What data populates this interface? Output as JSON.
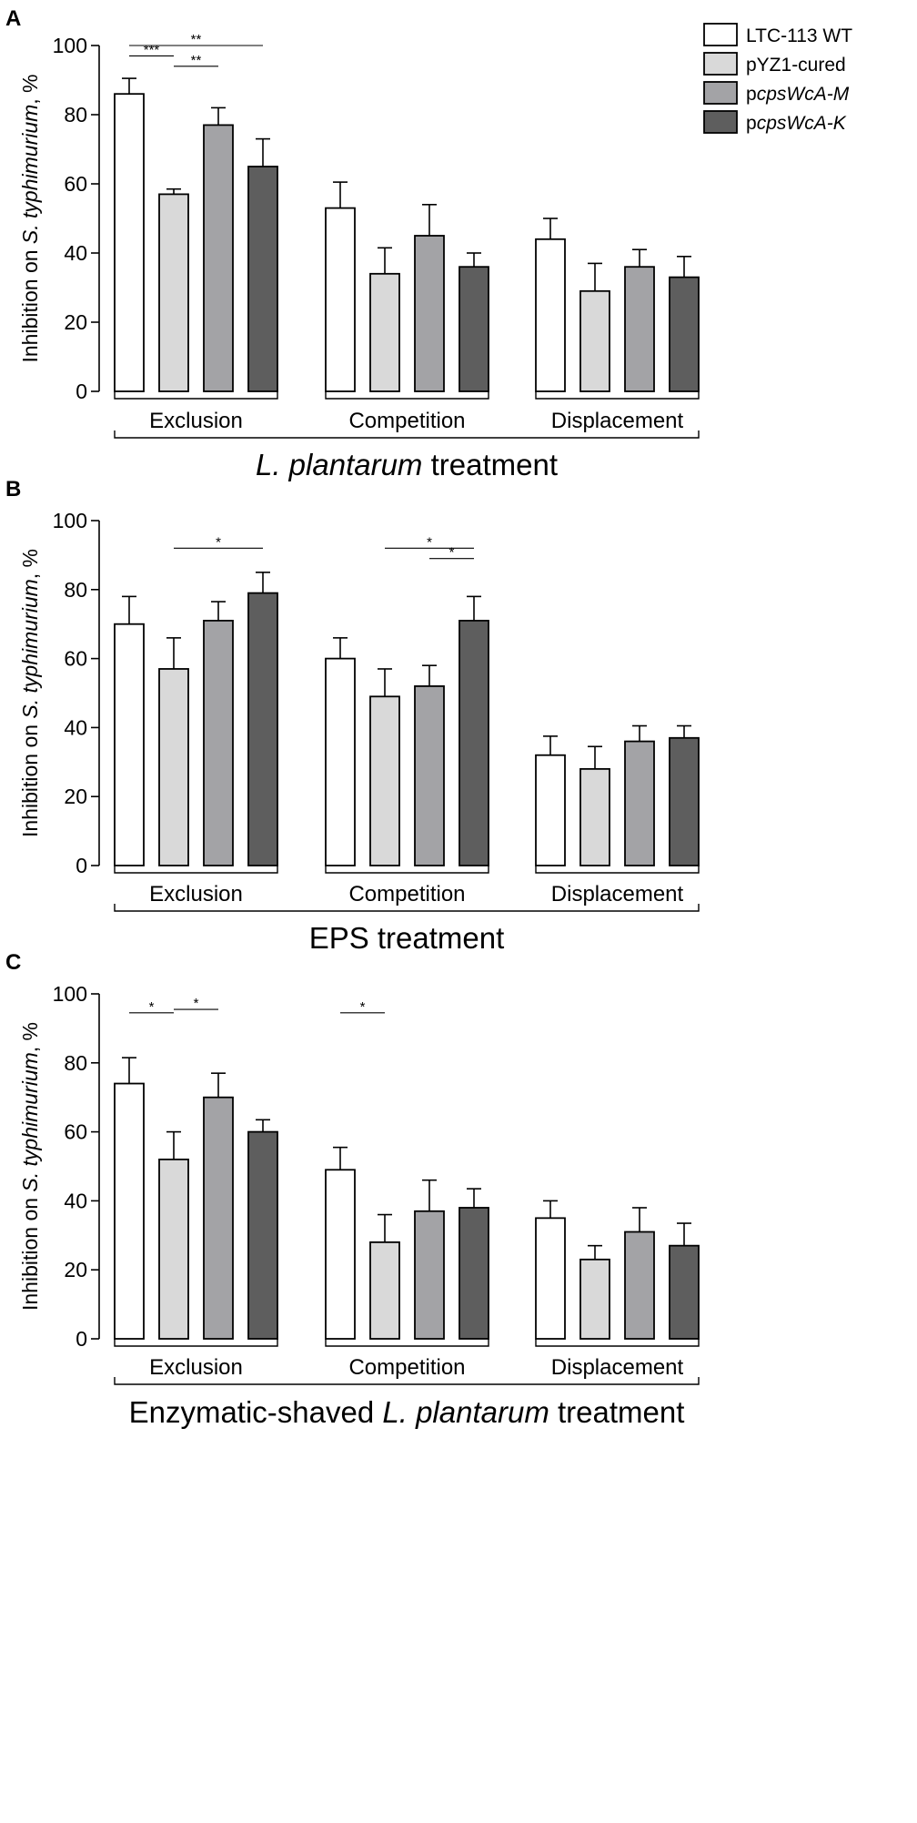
{
  "legend": {
    "entries": [
      {
        "label": "LTC-113 WT",
        "color": "#ffffff"
      },
      {
        "label": "pYZ1-cured",
        "color": "#d9d9d9"
      },
      {
        "label": "pcpsWcA-M",
        "color": "#a3a3a6"
      },
      {
        "label": "pcpsWcA-K",
        "color": "#5e5e5e"
      }
    ]
  },
  "chart_data": [
    {
      "type": "bar",
      "panel": "A",
      "title": "",
      "xlabel": "L. plantarum treatment",
      "ylabel": "Inhibition on S. typhimurium, %",
      "ylim": [
        0,
        100
      ],
      "yticks": [
        0,
        20,
        40,
        60,
        80,
        100
      ],
      "categories": [
        "Exclusion",
        "Competition",
        "Displacement"
      ],
      "series": [
        {
          "name": "LTC-113 WT",
          "values": [
            86,
            53,
            44
          ],
          "errors": [
            4.5,
            7.5,
            6
          ]
        },
        {
          "name": "pYZ1-cured",
          "values": [
            57,
            34,
            29
          ],
          "errors": [
            1.5,
            7.5,
            8
          ]
        },
        {
          "name": "pcpsWcA-M",
          "values": [
            77,
            45,
            36
          ],
          "errors": [
            5,
            9,
            5
          ]
        },
        {
          "name": "pcpsWcA-K",
          "values": [
            65,
            36,
            33
          ],
          "errors": [
            8,
            4,
            6
          ]
        }
      ],
      "significance": [
        {
          "category": 0,
          "from": 0,
          "to": 1,
          "label": "***"
        },
        {
          "category": 0,
          "from": 0,
          "to": 3,
          "label": "**"
        },
        {
          "category": 0,
          "from": 1,
          "to": 2,
          "label": "**"
        }
      ]
    },
    {
      "type": "bar",
      "panel": "B",
      "title": "",
      "xlabel": "EPS treatment",
      "ylabel": "Inhibition on S. typhimurium, %",
      "ylim": [
        0,
        100
      ],
      "yticks": [
        0,
        20,
        40,
        60,
        80,
        100
      ],
      "categories": [
        "Exclusion",
        "Competition",
        "Displacement"
      ],
      "series": [
        {
          "name": "LTC-113 WT",
          "values": [
            70,
            60,
            32
          ],
          "errors": [
            8,
            6,
            5.5
          ]
        },
        {
          "name": "pYZ1-cured",
          "values": [
            57,
            49,
            28
          ],
          "errors": [
            9,
            8,
            6.5
          ]
        },
        {
          "name": "pcpsWcA-M",
          "values": [
            71,
            52,
            36
          ],
          "errors": [
            5.5,
            6,
            4.5
          ]
        },
        {
          "name": "pcpsWcA-K",
          "values": [
            79,
            71,
            37
          ],
          "errors": [
            6,
            7,
            3.5
          ]
        }
      ],
      "significance": [
        {
          "category": 0,
          "from": 1,
          "to": 3,
          "label": "*"
        },
        {
          "category": 1,
          "from": 1,
          "to": 3,
          "label": "*"
        },
        {
          "category": 1,
          "from": 2,
          "to": 3,
          "label": "*"
        }
      ]
    },
    {
      "type": "bar",
      "panel": "C",
      "title": "",
      "xlabel": "Enzymatic-shaved L. plantarum treatment",
      "ylabel": "Inhibition on S. typhimurium, %",
      "ylim": [
        0,
        100
      ],
      "yticks": [
        0,
        20,
        40,
        60,
        80,
        100
      ],
      "categories": [
        "Exclusion",
        "Competition",
        "Displacement"
      ],
      "series": [
        {
          "name": "LTC-113 WT",
          "values": [
            74,
            49,
            35
          ],
          "errors": [
            7.5,
            6.5,
            5
          ]
        },
        {
          "name": "pYZ1-cured",
          "values": [
            52,
            28,
            23
          ],
          "errors": [
            8,
            8,
            4
          ]
        },
        {
          "name": "pcpsWcA-M",
          "values": [
            70,
            37,
            31
          ],
          "errors": [
            7,
            9,
            7
          ]
        },
        {
          "name": "pcpsWcA-K",
          "values": [
            60,
            38,
            27
          ],
          "errors": [
            3.5,
            5.5,
            6.5
          ]
        }
      ],
      "significance": [
        {
          "category": 0,
          "from": 0,
          "to": 1,
          "label": "*"
        },
        {
          "category": 0,
          "from": 1,
          "to": 2,
          "label": "*"
        },
        {
          "category": 1,
          "from": 0,
          "to": 1,
          "label": "*"
        }
      ]
    }
  ]
}
